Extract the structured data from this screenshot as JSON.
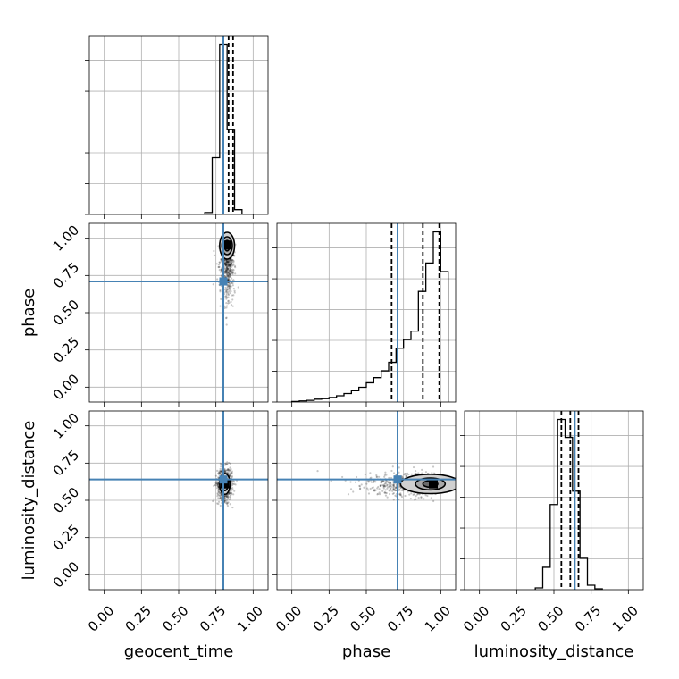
{
  "chart_data": {
    "type": "corner",
    "grid": true,
    "truth_color": "#4682b4",
    "hist_color": "#000000",
    "parameters": [
      {
        "name": "geocent_time",
        "truth": 0.8,
        "quantiles": [
          0.8,
          0.835,
          0.865
        ],
        "range": [
          -0.1,
          1.1
        ]
      },
      {
        "name": "phase",
        "truth": 0.71,
        "quantiles": [
          0.67,
          0.88,
          0.99
        ],
        "range": [
          -0.1,
          1.1
        ]
      },
      {
        "name": "luminosity_distance",
        "truth": 0.64,
        "quantiles": [
          0.55,
          0.61,
          0.665
        ],
        "range": [
          -0.1,
          1.1
        ]
      }
    ],
    "ticks": [
      0.0,
      0.25,
      0.5,
      0.75,
      1.0
    ],
    "tick_labels": [
      "0.00",
      "0.25",
      "0.50",
      "0.75",
      "1.00"
    ],
    "histograms": [
      {
        "bins": [
          0.675,
          0.725,
          0.775,
          0.825,
          0.875,
          0.925,
          0.975,
          1.025
        ],
        "counts": [
          0.2,
          6.0,
          18.0,
          9.0,
          0.5,
          0.0,
          0.0
        ]
      },
      {
        "bins": [
          0.0,
          0.05,
          0.1,
          0.15,
          0.2,
          0.25,
          0.3,
          0.35,
          0.4,
          0.45,
          0.5,
          0.55,
          0.6,
          0.65,
          0.7,
          0.75,
          0.8,
          0.85,
          0.9,
          0.95,
          1.0,
          1.05
        ],
        "counts": [
          0.1,
          0.2,
          0.3,
          0.5,
          0.6,
          0.8,
          1.1,
          1.5,
          2.0,
          2.6,
          3.4,
          4.3,
          5.5,
          7.0,
          9.5,
          11.0,
          12.5,
          19.5,
          24.5,
          30.0,
          23.0
        ]
      },
      {
        "bins": [
          0.375,
          0.425,
          0.475,
          0.525,
          0.575,
          0.625,
          0.675,
          0.725,
          0.775,
          0.825
        ],
        "counts": [
          0.2,
          2.5,
          9.5,
          19.0,
          17.0,
          11.0,
          3.5,
          0.5,
          0.1
        ]
      }
    ],
    "pairs": [
      {
        "row": 1,
        "col": 0,
        "center": [
          0.825,
          0.95
        ],
        "contours": [
          [
            0.05,
            0.09
          ],
          [
            0.035,
            0.06
          ],
          [
            0.018,
            0.035
          ]
        ],
        "mode": [
          0.825,
          0.955
        ],
        "scatter_sd": [
          0.022,
          0.17
        ],
        "skew": "down"
      },
      {
        "row": 2,
        "col": 0,
        "center": [
          0.81,
          0.61
        ],
        "contours": [
          [
            0.035,
            0.07
          ],
          [
            0.022,
            0.045
          ],
          [
            0.012,
            0.025
          ]
        ],
        "mode": [
          0.81,
          0.61
        ],
        "scatter_sd": [
          0.025,
          0.055
        ],
        "skew": "none"
      },
      {
        "row": 2,
        "col": 1,
        "center": [
          0.93,
          0.61
        ],
        "contours": [
          [
            0.2,
            0.065
          ],
          [
            0.1,
            0.04
          ],
          [
            0.05,
            0.022
          ]
        ],
        "mode": [
          0.95,
          0.61
        ],
        "scatter_sd": [
          0.22,
          0.04
        ],
        "skew": "left"
      }
    ]
  }
}
